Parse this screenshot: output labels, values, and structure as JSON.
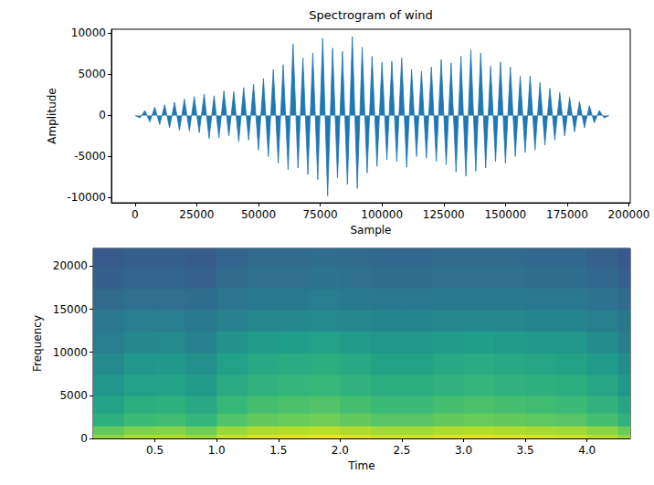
{
  "chart_data": [
    {
      "type": "line",
      "title": "Spectrogram of wind",
      "x_label": "Sample",
      "y_label": "Amplitude",
      "color": "#1f77b4",
      "x": [
        0,
        2000,
        4000,
        6000,
        8000,
        10000,
        12000,
        14000,
        16000,
        18000,
        20000,
        22000,
        24000,
        26000,
        28000,
        30000,
        32000,
        34000,
        36000,
        38000,
        40000,
        42000,
        44000,
        46000,
        48000,
        50000,
        52000,
        54000,
        56000,
        58000,
        60000,
        62000,
        64000,
        66000,
        68000,
        70000,
        72000,
        74000,
        76000,
        78000,
        80000,
        82000,
        84000,
        86000,
        88000,
        90000,
        92000,
        94000,
        96000,
        98000,
        100000,
        102000,
        104000,
        106000,
        108000,
        110000,
        112000,
        114000,
        116000,
        118000,
        120000,
        122000,
        124000,
        126000,
        128000,
        130000,
        132000,
        134000,
        136000,
        138000,
        140000,
        142000,
        144000,
        146000,
        148000,
        150000,
        152000,
        154000,
        156000,
        158000,
        160000,
        162000,
        164000,
        166000,
        168000,
        170000,
        172000,
        174000,
        176000,
        178000,
        180000,
        182000,
        184000,
        186000,
        188000,
        190000,
        192000
      ],
      "values": [
        0,
        -300,
        600,
        -800,
        1000,
        -1100,
        1300,
        -1500,
        1600,
        -1800,
        2000,
        -1900,
        2300,
        -2100,
        2600,
        -2800,
        2400,
        -2700,
        3000,
        -2500,
        2900,
        -3200,
        3400,
        -3000,
        3800,
        -4200,
        4500,
        -5000,
        5600,
        -5800,
        6200,
        -6600,
        8700,
        -6400,
        7000,
        -7200,
        7600,
        -7800,
        9400,
        -9800,
        8200,
        -7600,
        7800,
        -8400,
        9600,
        -8900,
        8300,
        -7000,
        7200,
        -6200,
        6500,
        -5400,
        6600,
        -5600,
        7000,
        -6300,
        5600,
        -5000,
        5400,
        -5200,
        5900,
        -5600,
        6800,
        -6000,
        6400,
        -6900,
        7200,
        -7400,
        8000,
        -6800,
        7600,
        -6400,
        6000,
        -5600,
        6500,
        -5800,
        5900,
        -5000,
        4800,
        -4500,
        4800,
        -4200,
        4000,
        -3600,
        3300,
        -3000,
        2800,
        -2500,
        2200,
        -2000,
        1700,
        -1500,
        1200,
        -900,
        600,
        -300,
        0
      ],
      "xlim": [
        -9550,
        200550
      ],
      "xticks": [
        0,
        25000,
        50000,
        75000,
        100000,
        125000,
        150000,
        175000,
        200000
      ],
      "ylim": [
        -10630,
        10500
      ],
      "yticks": [
        -10000,
        -5000,
        0,
        5000,
        10000
      ],
      "grid": false
    },
    {
      "type": "heatmap",
      "x_label": "Time",
      "y_label": "Frequency",
      "time_bins": [
        0,
        0.25,
        0.5,
        0.75,
        1,
        1.25,
        1.5,
        1.75,
        2,
        2.25,
        2.5,
        2.75,
        3,
        3.25,
        3.5,
        3.75,
        4,
        4.25,
        4.35
      ],
      "freq_bins": [
        0,
        500,
        1500,
        3000,
        5000,
        7500,
        10000,
        12500,
        15000,
        17500,
        20000,
        22050
      ],
      "cells": [
        [
          35,
          39,
          40,
          37,
          43,
          46,
          47,
          48,
          46,
          44,
          44,
          46,
          47,
          46,
          45,
          44,
          41,
          36
        ],
        [
          28,
          32,
          33,
          30,
          36,
          39,
          40,
          41,
          39,
          37,
          37,
          39,
          40,
          39,
          38,
          37,
          34,
          29
        ],
        [
          17,
          21,
          22,
          19,
          25,
          28,
          29,
          30,
          28,
          26,
          26,
          28,
          29,
          28,
          27,
          26,
          23,
          18
        ],
        [
          12,
          16,
          17,
          14,
          20,
          23,
          24,
          25,
          23,
          21,
          21,
          23,
          24,
          23,
          22,
          21,
          18,
          13
        ],
        [
          7,
          11,
          12,
          9,
          15,
          18,
          19,
          20,
          18,
          16,
          16,
          18,
          19,
          18,
          17,
          16,
          13,
          8
        ],
        [
          3,
          7,
          8,
          5,
          11,
          14,
          15,
          16,
          14,
          12,
          12,
          14,
          15,
          14,
          13,
          12,
          9,
          4
        ],
        [
          -2,
          2,
          3,
          0,
          6,
          9,
          10,
          11,
          9,
          7,
          7,
          9,
          10,
          9,
          8,
          7,
          4,
          -1
        ],
        [
          -4,
          -2,
          -2,
          -3,
          0,
          2,
          2,
          3,
          2,
          1,
          1,
          2,
          2,
          2,
          1,
          1,
          -1,
          -4
        ],
        [
          -9,
          -7,
          -7,
          -8,
          -5,
          -3,
          -3,
          -2,
          -3,
          -4,
          -4,
          -3,
          -3,
          -3,
          -4,
          -4,
          -6,
          -9
        ],
        [
          -13,
          -11,
          -11,
          -12,
          -9,
          -7,
          -7,
          -6,
          -7,
          -8,
          -8,
          -7,
          -7,
          -7,
          -8,
          -8,
          -10,
          -13
        ],
        [
          -15,
          -13,
          -13,
          -14,
          -11,
          -9,
          -9,
          -8,
          -9,
          -10,
          -10,
          -9,
          -9,
          -9,
          -10,
          -10,
          -12,
          -15
        ]
      ],
      "clim": [
        -40,
        50
      ],
      "xlim": [
        0,
        4.35
      ],
      "xticks": [
        0.5,
        {
          "value": 1,
          "label": "1.0"
        },
        1.5,
        {
          "value": 2,
          "label": "2.0"
        },
        2.5,
        {
          "value": 3,
          "label": "3.0"
        },
        3.5,
        {
          "value": 4,
          "label": "4.0"
        }
      ],
      "ylim": [
        0,
        22050
      ],
      "yticks": [
        0,
        5000,
        10000,
        15000,
        20000
      ],
      "grid": false
    }
  ]
}
